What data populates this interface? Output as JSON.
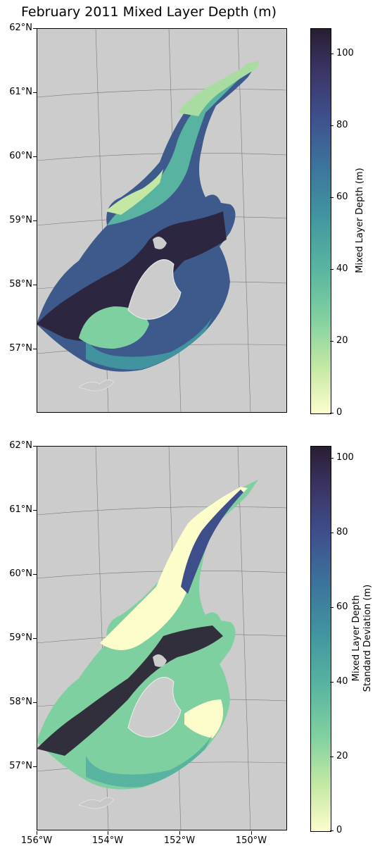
{
  "title": "February 2011 Mixed Layer Depth (m)",
  "panels": [
    {
      "name": "mixed-layer-depth",
      "colorbar_label": "Mixed Layer Depth (m)",
      "colorbar_range": [
        0,
        107
      ],
      "colorbar_ticks": [
        "0",
        "20",
        "40",
        "60",
        "80",
        "100"
      ],
      "colormap": [
        "#fdfdcc",
        "#7fd0a0",
        "#4193a0",
        "#3e4e8a",
        "#2a1d32"
      ]
    },
    {
      "name": "mixed-layer-depth-std",
      "colorbar_label_line1": "Mixed Layer Depth",
      "colorbar_label_line2": "Standard Deviation (m)",
      "colorbar_range": [
        0,
        103
      ],
      "colorbar_ticks": [
        "0",
        "20",
        "40",
        "60",
        "80",
        "100"
      ],
      "colormap": [
        "#fdfdcc",
        "#7fd0a0",
        "#4193a0",
        "#3e4e8a",
        "#2a1d32"
      ]
    }
  ],
  "lat_labels": [
    "62°N",
    "61°N",
    "60°N",
    "59°N",
    "58°N",
    "57°N"
  ],
  "lon_labels": [
    "156°W",
    "154°W",
    "152°W",
    "150°W"
  ],
  "land_color": "#cccccc"
}
